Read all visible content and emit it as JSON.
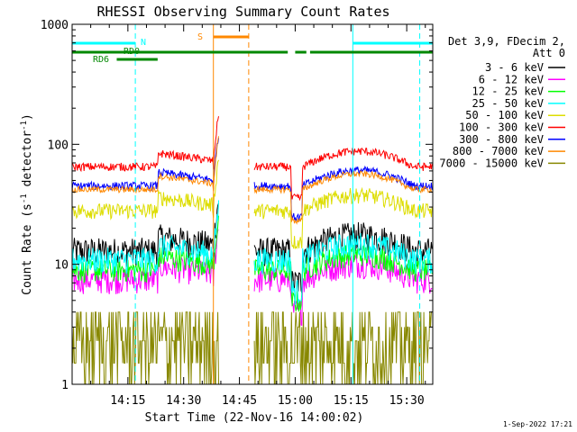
{
  "chart_data": {
    "type": "line",
    "title": "RHESSI Observing Summary Count Rates",
    "xlabel": "Start Time (22-Nov-16 14:00:02)",
    "ylabel_main": "Count Rate (s",
    "ylabel_sup1": "-1",
    "ylabel_mid": " detector",
    "ylabel_sup2": "-1",
    "ylabel_end": ")",
    "yscale": "log",
    "ylim": [
      1,
      1000
    ],
    "xlim_minutes": [
      0,
      97
    ],
    "x_ticks": [
      {
        "t": 15,
        "label": "14:15"
      },
      {
        "t": 30,
        "label": "14:30"
      },
      {
        "t": 45,
        "label": "14:45"
      },
      {
        "t": 60,
        "label": "15:00"
      },
      {
        "t": 75,
        "label": "15:15"
      },
      {
        "t": 90,
        "label": "15:30"
      }
    ],
    "y_ticks": [
      {
        "v": 1,
        "label": "1"
      },
      {
        "v": 10,
        "label": "10"
      },
      {
        "v": 100,
        "label": "100"
      },
      {
        "v": 1000,
        "label": "1000"
      }
    ],
    "legend_header": [
      "Det 3,9, FDecim 2,",
      "Att 0"
    ],
    "series": [
      {
        "name": "3 - 6 keV",
        "color": "#000000",
        "level": 13,
        "noise": 0.28
      },
      {
        "name": "6 - 12 keV",
        "color": "#ff00ff",
        "level": 7.5,
        "noise": 0.25
      },
      {
        "name": "12 - 25 keV",
        "color": "#00ff00",
        "level": 9,
        "noise": 0.22
      },
      {
        "name": "25 - 50 keV",
        "color": "#00ffff",
        "level": 11,
        "noise": 0.25
      },
      {
        "name": "50 - 100 keV",
        "color": "#dddd00",
        "level": 28,
        "noise": 0.15
      },
      {
        "name": "100 - 300 keV",
        "color": "#ff0000",
        "level": 65,
        "noise": 0.08
      },
      {
        "name": "300 - 800 keV",
        "color": "#0000ff",
        "level": 45,
        "noise": 0.08
      },
      {
        "name": "800 - 7000 keV",
        "color": "#ff8800",
        "level": 42,
        "noise": 0.06
      },
      {
        "name": "7000 - 15000 keV",
        "color": "#888800",
        "level": 2.3,
        "noise": 0.5
      }
    ],
    "data_gaps_minutes": [
      [
        39.5,
        49
      ]
    ],
    "flags": [
      {
        "label": "N",
        "color": "#00ffff",
        "segments": [
          [
            0,
            17
          ],
          [
            75.5,
            97
          ]
        ]
      },
      {
        "label": "RD0",
        "color": "#008800",
        "segments": [
          [
            0,
            58
          ],
          [
            60,
            63
          ],
          [
            64,
            97
          ]
        ]
      },
      {
        "label": "RD6",
        "color": "#008800",
        "segments": [
          [
            12,
            23
          ]
        ]
      },
      {
        "label": "S",
        "color": "#ff8800",
        "segments": [
          [
            38,
            47.5
          ]
        ]
      }
    ],
    "vlines": [
      {
        "t": 17,
        "color": "#00ffff",
        "style": "dashed"
      },
      {
        "t": 75.5,
        "color": "#00ffff",
        "style": "solid"
      },
      {
        "t": 93.5,
        "color": "#00ffff",
        "style": "dashed"
      },
      {
        "t": 38,
        "color": "#ff8800",
        "style": "solid"
      },
      {
        "t": 47.5,
        "color": "#ff8800",
        "style": "dashed"
      }
    ],
    "footer_stamp": "1-Sep-2022 17:21"
  }
}
